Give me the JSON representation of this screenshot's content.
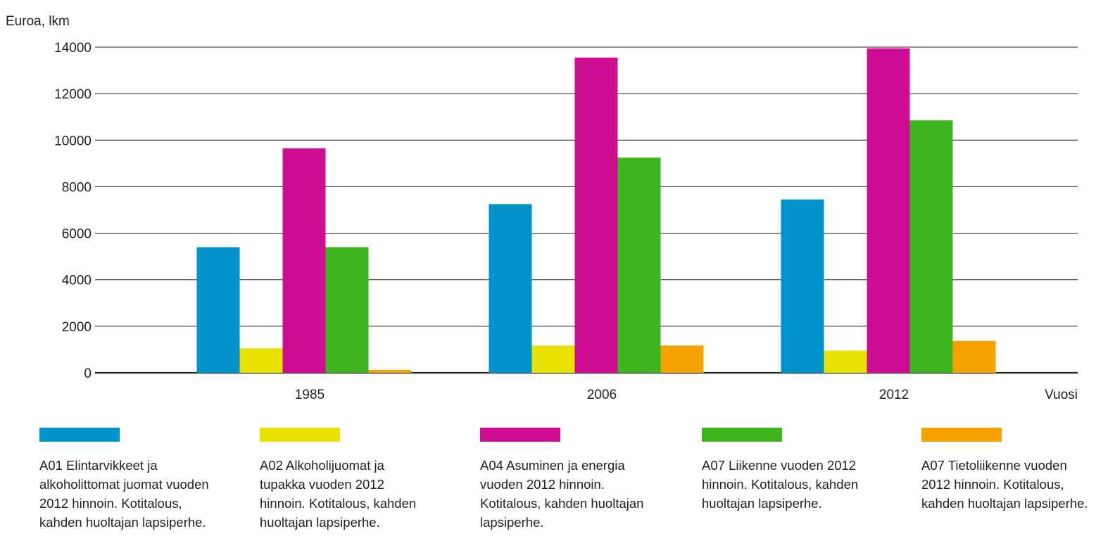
{
  "chart_data": {
    "type": "bar",
    "ylabel": "Euroa, lkm",
    "xlabel": "Vuosi",
    "categories": [
      "1985",
      "2006",
      "2012"
    ],
    "ylim": [
      0,
      14000
    ],
    "yticks": [
      "0",
      "2000",
      "4000",
      "6000",
      "8000",
      "10000",
      "12000",
      "14000"
    ],
    "grid": true,
    "legend_position": "bottom",
    "series": [
      {
        "name": "A01 Elintarvikkeet ja alkoholittomat juomat vuoden 2012 hinnoin. Kotitalous, kahden huoltajan lapsiperhe.",
        "color": "#0093cb",
        "values": [
          5400,
          7250,
          7450
        ]
      },
      {
        "name": "A02 Alkoholijuomat ja tupakka vuoden 2012 hinnoin. Kotitalous, kahden huoltajan lapsiperhe.",
        "color": "#e9e100",
        "values": [
          1050,
          1170,
          950
        ]
      },
      {
        "name": "A04 Asuminen ja energia vuoden 2012 hinnoin. Kotitalous, kahden huoltajan lapsiperhe.",
        "color": "#cf0d93",
        "values": [
          9650,
          13550,
          13950
        ]
      },
      {
        "name": "A07 Liikenne vuoden 2012 hinnoin. Kotitalous, kahden huoltajan lapsiperhe.",
        "color": "#3db51f",
        "values": [
          5400,
          9250,
          10850
        ]
      },
      {
        "name": "A07 Tietoliikenne vuoden 2012 hinnoin. Kotitalous, kahden huoltajan lapsiperhe.",
        "color": "#f6a300",
        "values": [
          120,
          1170,
          1370
        ]
      }
    ]
  }
}
